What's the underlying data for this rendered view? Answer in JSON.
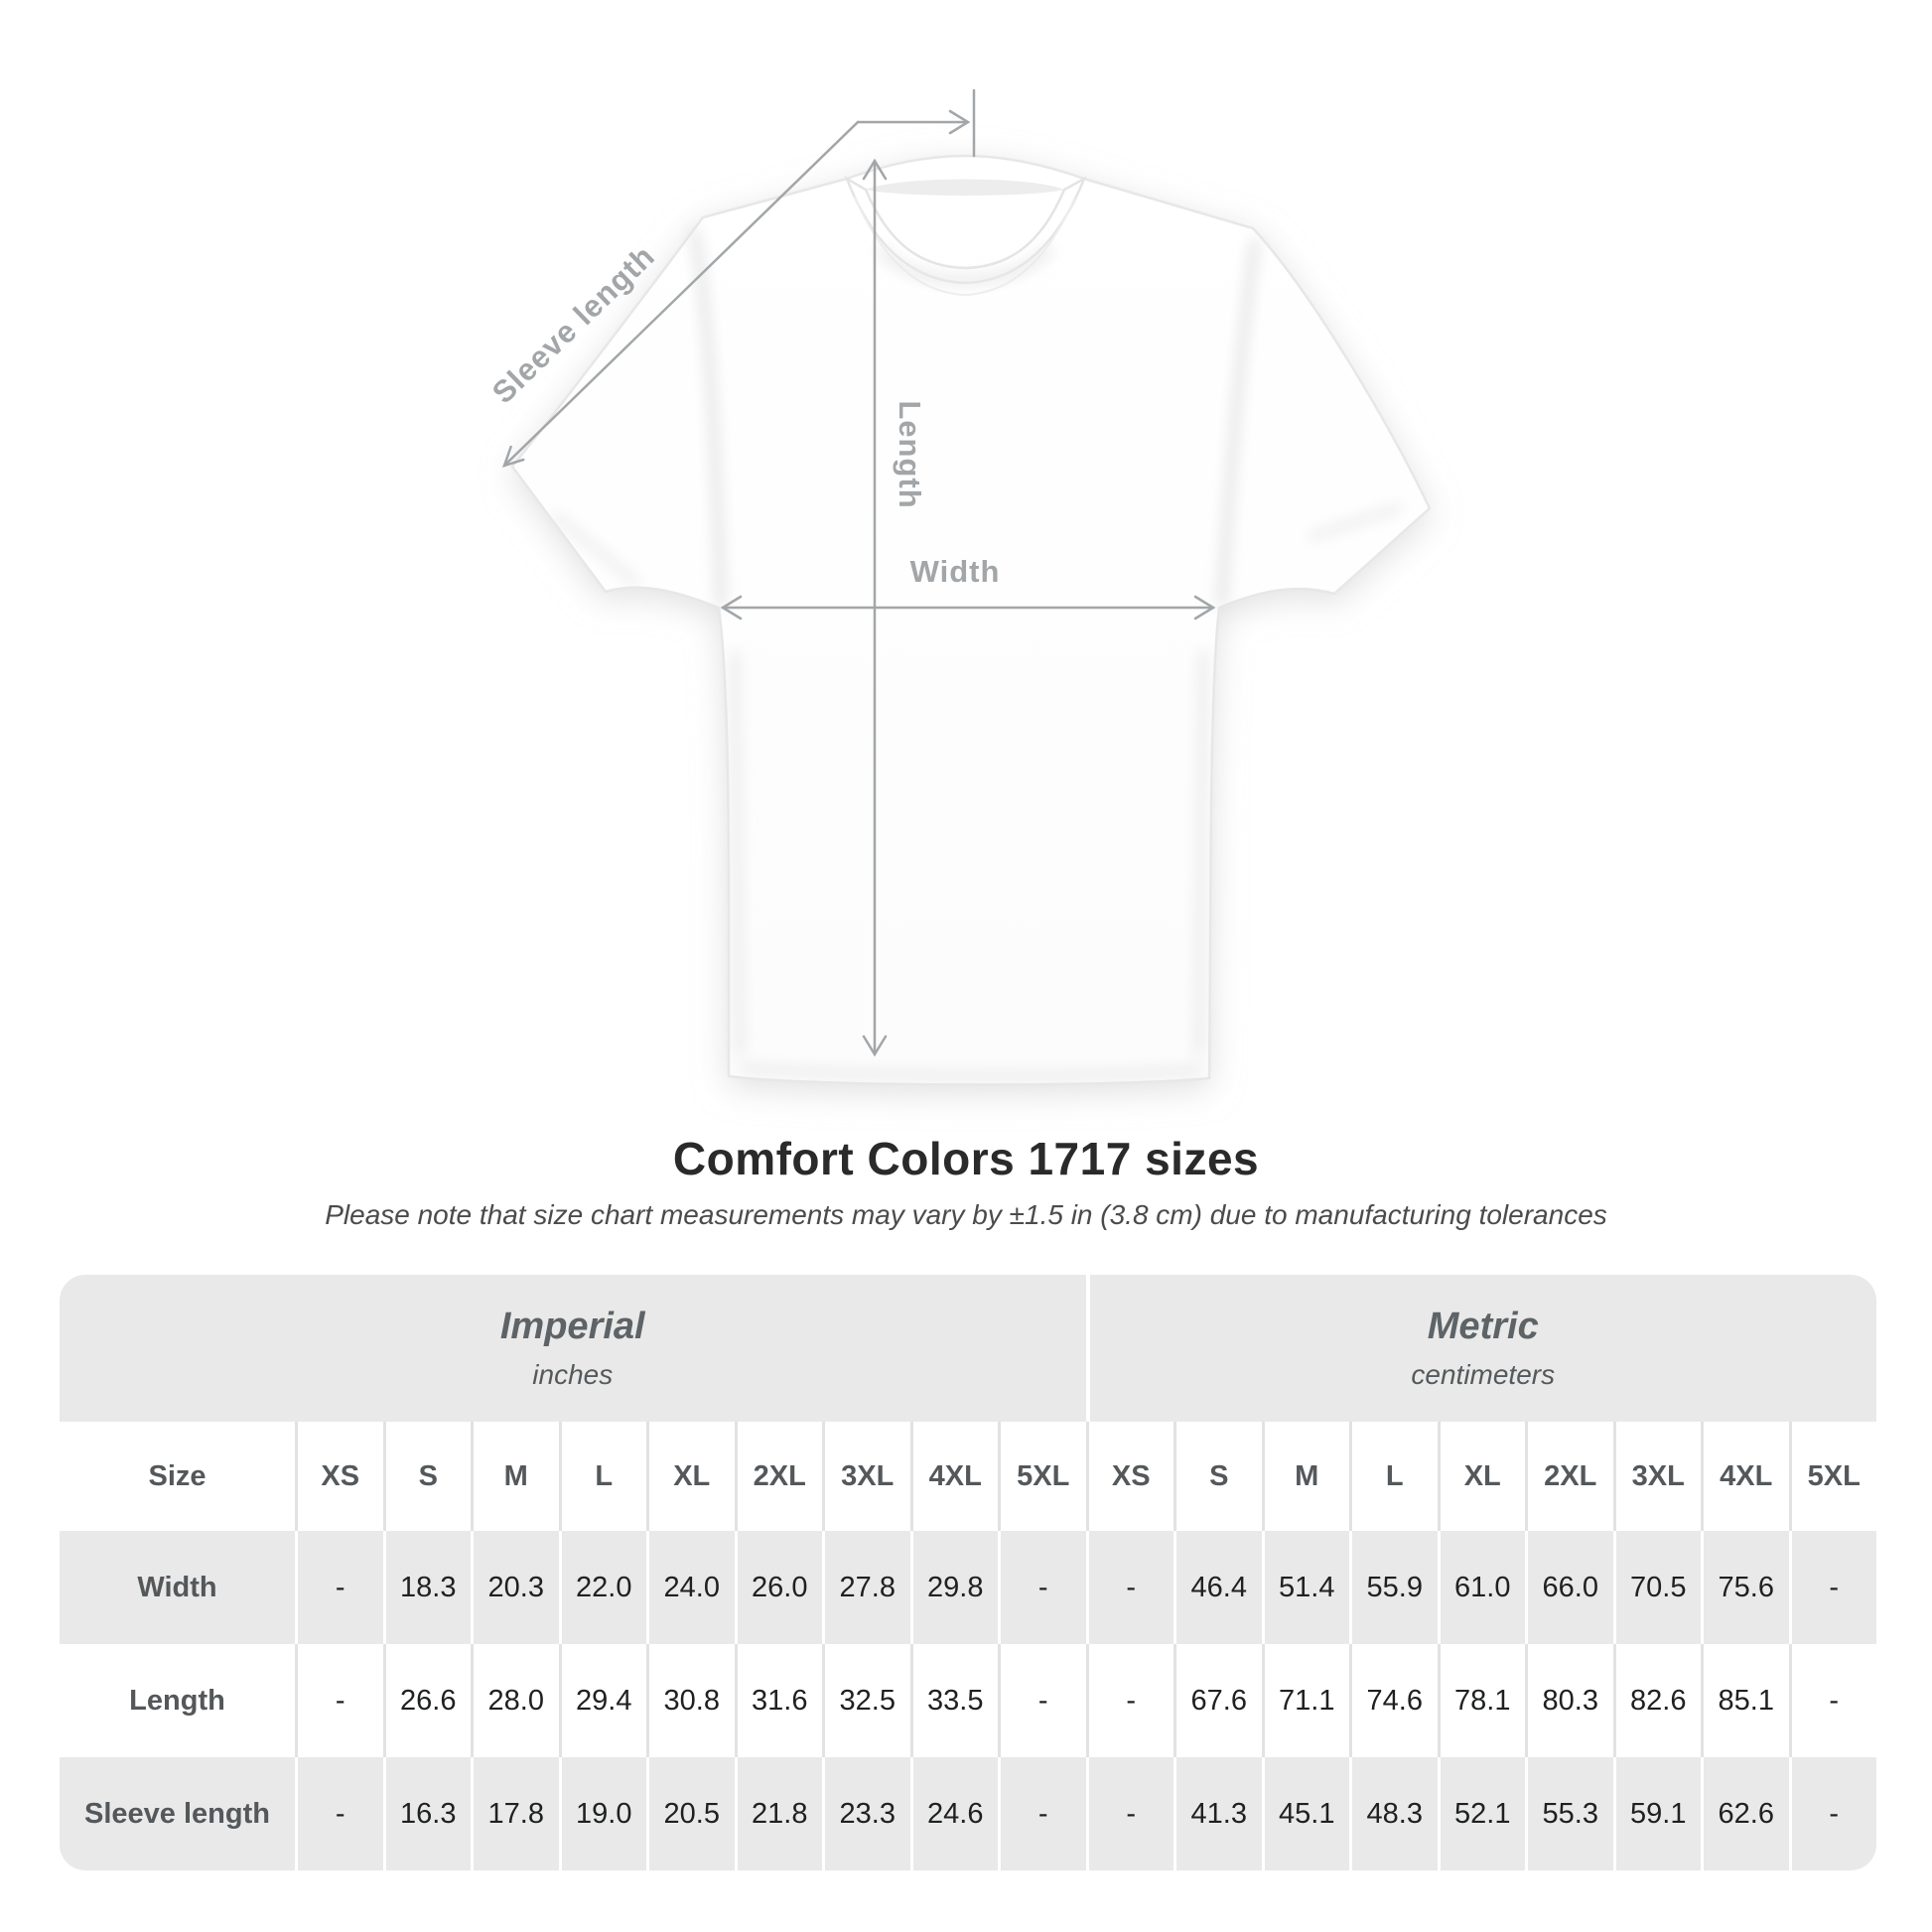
{
  "diagram": {
    "labels": {
      "sleeve_length": "Sleeve length",
      "length": "Length",
      "width": "Width"
    }
  },
  "header": {
    "title": "Comfort Colors 1717 sizes",
    "subtitle": "Please note that size chart measurements may vary by ±1.5 in (3.8 cm) due to manufacturing tolerances"
  },
  "chart_data": {
    "type": "table",
    "title": "Comfort Colors 1717 sizes",
    "note": "Please note that size chart measurements may vary by ±1.5 in (3.8 cm) due to manufacturing tolerances",
    "corner_label": "Size",
    "column_groups": [
      {
        "label": "Imperial",
        "sublabel": "inches"
      },
      {
        "label": "Metric",
        "sublabel": "centimeters"
      }
    ],
    "sizes": [
      "XS",
      "S",
      "M",
      "L",
      "XL",
      "2XL",
      "3XL",
      "4XL",
      "5XL"
    ],
    "rows": [
      {
        "label": "Width",
        "imperial": [
          "-",
          "18.3",
          "20.3",
          "22.0",
          "24.0",
          "26.0",
          "27.8",
          "29.8",
          "-"
        ],
        "metric": [
          "-",
          "46.4",
          "51.4",
          "55.9",
          "61.0",
          "66.0",
          "70.5",
          "75.6",
          "-"
        ]
      },
      {
        "label": "Length",
        "imperial": [
          "-",
          "26.6",
          "28.0",
          "29.4",
          "30.8",
          "31.6",
          "32.5",
          "33.5",
          "-"
        ],
        "metric": [
          "-",
          "67.6",
          "71.1",
          "74.6",
          "78.1",
          "80.3",
          "82.6",
          "85.1",
          "-"
        ]
      },
      {
        "label": "Sleeve length",
        "imperial": [
          "-",
          "16.3",
          "17.8",
          "19.0",
          "20.5",
          "21.8",
          "23.3",
          "24.6",
          "-"
        ],
        "metric": [
          "-",
          "41.3",
          "45.1",
          "48.3",
          "52.1",
          "55.3",
          "59.1",
          "62.6",
          "-"
        ]
      }
    ]
  },
  "colors": {
    "table_gray": "#e9e9e9",
    "separator_on_white": "#e2e2e2",
    "annotation_gray": "#a3a6a8",
    "title_text": "#2a2a2a",
    "muted_text": "#54585b",
    "value_text": "#1f2021"
  }
}
